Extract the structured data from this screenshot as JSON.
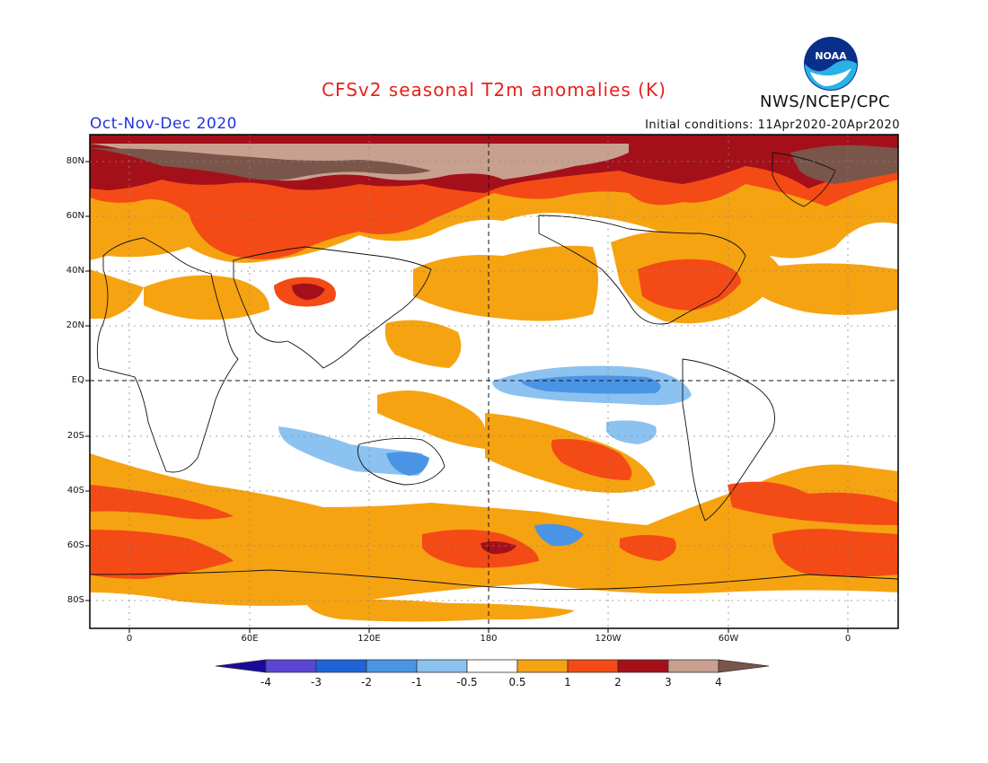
{
  "header": {
    "title": "CFSv2 seasonal T2m anomalies (K)",
    "agency": "NWS/NCEP/CPC",
    "period": "Oct-Nov-Dec 2020",
    "initial_conditions": "Initial conditions: 11Apr2020-20Apr2020",
    "logo_text": "NOAA"
  },
  "axes": {
    "lat_labels": [
      "80N",
      "60N",
      "40N",
      "20N",
      "EQ",
      "20S",
      "40S",
      "60S",
      "80S"
    ],
    "lon_labels": [
      "0",
      "60E",
      "120E",
      "180",
      "120W",
      "60W",
      "0"
    ]
  },
  "colorbar": {
    "labels": [
      "-4",
      "-3",
      "-2",
      "-1",
      "-0.5",
      "0.5",
      "1",
      "2",
      "3",
      "4"
    ],
    "colors": [
      "#1a0a9c",
      "#5a46d2",
      "#1e64d8",
      "#4a94e6",
      "#8cc2f0",
      "#ffffff",
      "#f6a312",
      "#f44a16",
      "#a4101a",
      "#c8a090",
      "#7a554a"
    ]
  },
  "palette": {
    "weak_warm": "#f6a312",
    "warm": "#f44a16",
    "strong_warm": "#a4101a",
    "very_warm": "#c8a090",
    "extreme_warm": "#7a554a",
    "weak_cool": "#8cc2f0",
    "cool": "#4a94e6",
    "title_red": "#e8201a",
    "period_blue": "#2233dd"
  }
}
